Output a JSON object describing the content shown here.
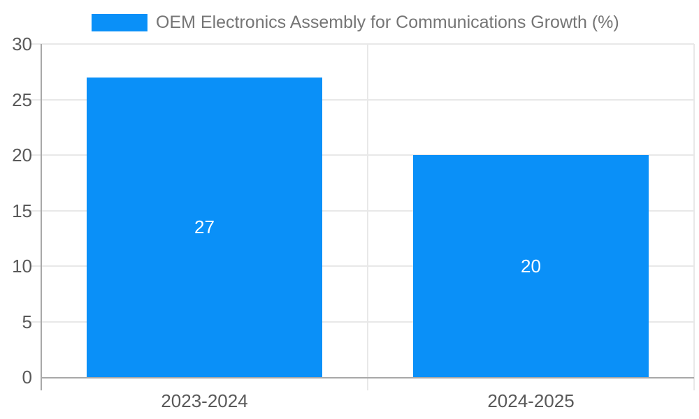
{
  "chart_data": {
    "type": "bar",
    "title": "OEM Electronics Assembly for Communications Growth (%)",
    "categories": [
      "2023-2024",
      "2024-2025"
    ],
    "values": [
      27,
      20
    ],
    "value_labels": [
      "27",
      "20"
    ],
    "series": [
      {
        "name": "OEM Electronics Assembly for Communications Growth (%)",
        "values": [
          27,
          20
        ]
      }
    ],
    "xlabel": "",
    "ylabel": "",
    "ylim": [
      0,
      30
    ],
    "yticks": [
      0,
      5,
      10,
      15,
      20,
      25,
      30
    ],
    "grid": true,
    "legend_position": "top-center"
  },
  "colors": {
    "bar": "#0A90F8",
    "legend_text": "#757575",
    "tick_label": "#595959",
    "axis_line": "#A8A8A8",
    "gridline": "#E8E8E8",
    "value_label": "#FFFFFF",
    "background": "#FFFFFF"
  }
}
